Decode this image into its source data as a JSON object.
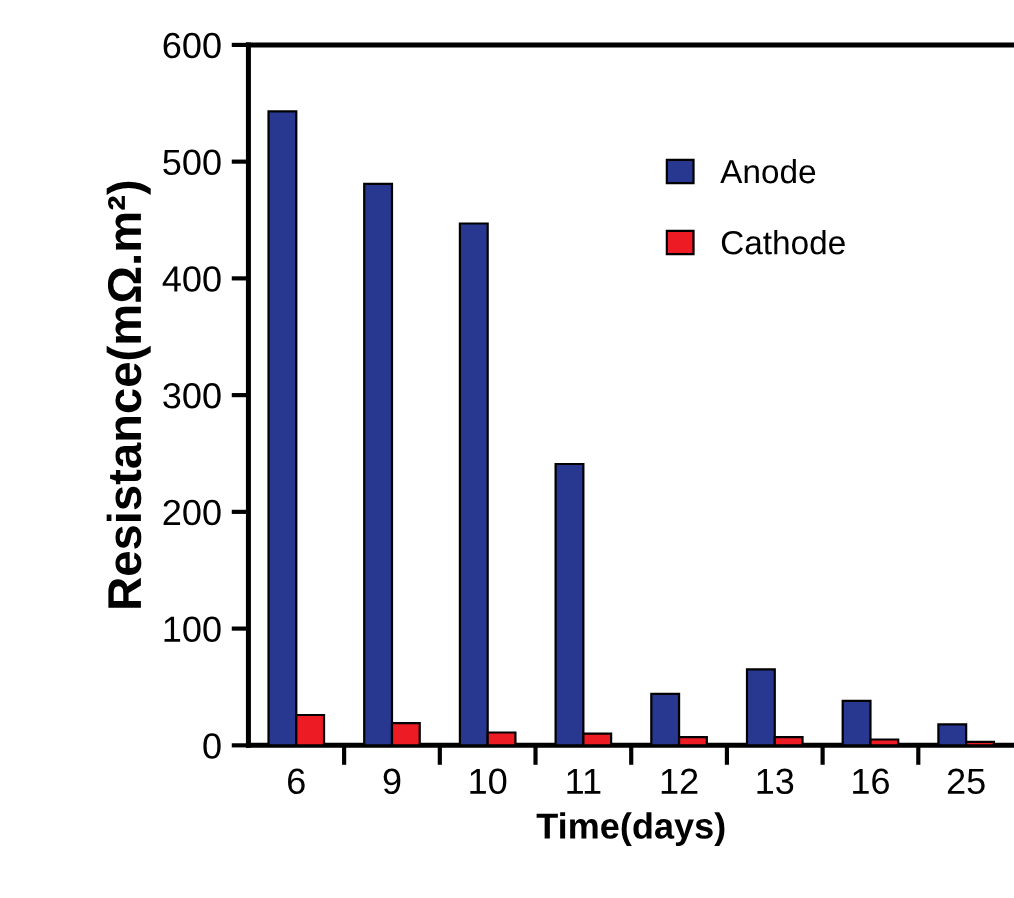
{
  "chart_data": {
    "type": "bar",
    "xlabel": "Time(days)",
    "ylabel": "Resistance(mΩ.m²)",
    "categories": [
      "6",
      "9",
      "10",
      "11",
      "12",
      "13",
      "16",
      "25"
    ],
    "series": [
      {
        "name": "Anode",
        "color": "#283891",
        "values": [
          543,
          481,
          447,
          241,
          44,
          65,
          38,
          18
        ]
      },
      {
        "name": "Cathode",
        "color": "#ed1c24",
        "values": [
          26,
          19,
          11,
          10,
          7,
          7,
          5,
          3
        ]
      }
    ],
    "ylim": [
      0,
      600
    ],
    "yticks": [
      0,
      100,
      200,
      300,
      400,
      500,
      600
    ],
    "grid": false,
    "legend": "top right"
  }
}
